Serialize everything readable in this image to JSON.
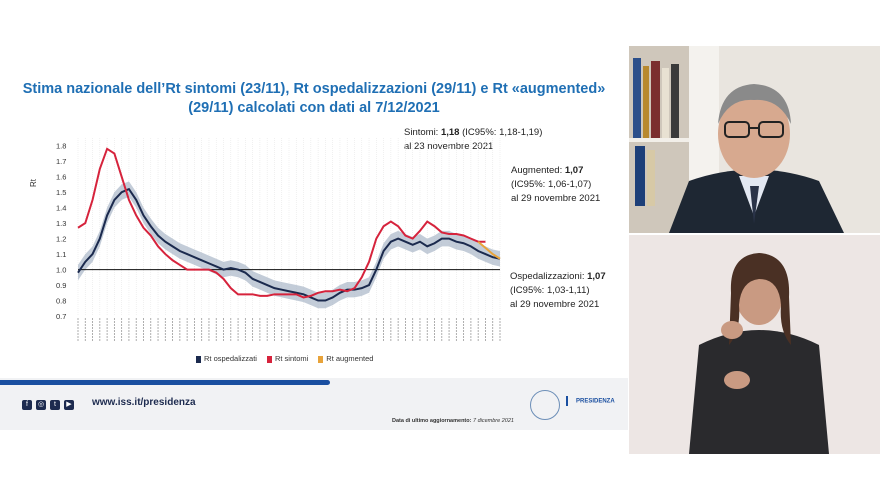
{
  "slide": {
    "title_line1": "Stima nazionale dell’Rt sintomi (23/11), Rt ospedalizzazioni (29/11) e Rt «augmented»",
    "title_line2": "(29/11) calcolati con dati al 7/12/2021",
    "annotations": {
      "sintomi": {
        "label": "Sintomi:",
        "value": "1,18",
        "ci": "(IC95%: 1,18-1,19)",
        "date": "al 23 novembre 2021"
      },
      "augmented": {
        "label": "Augmented:",
        "value": "1,07",
        "ci": "(IC95%: 1,06-1,07)",
        "date": "al 29 novembre 2021"
      },
      "ospedalizzazioni": {
        "label": "Ospedalizzazioni:",
        "value": "1,07",
        "ci": "(IC95%: 1,03-1,11)",
        "date": "al 29 novembre 2021"
      }
    },
    "legend": [
      {
        "label": "Rt ospedalizzati",
        "color": "#1b2a4e"
      },
      {
        "label": "Rt sintomi",
        "color": "#d6233c"
      },
      {
        "label": "Rt augmented",
        "color": "#e8a33a"
      }
    ],
    "footer": {
      "url": "www.iss.it/presidenza",
      "update_label": "Data di ultimo aggiornamento:",
      "update_date": "7 dicembre 2021",
      "presidenza": "PRESIDENZA",
      "social_icons": [
        "facebook-icon",
        "instagram-icon",
        "twitter-icon",
        "youtube-icon"
      ]
    }
  },
  "chart_data": {
    "type": "line",
    "ylabel": "Rt",
    "yticks": [
      "0.7",
      "0.8",
      "0.9",
      "1.0",
      "1.1",
      "1.2",
      "1.3",
      "1.4",
      "1.5",
      "1.6",
      "1.7",
      "1.8"
    ],
    "ylim": [
      0.7,
      1.85
    ],
    "reference_line": 1.0,
    "series": [
      {
        "name": "Rt ospedalizzati",
        "color": "#1b2a4e",
        "band": true,
        "values": [
          0.98,
          1.05,
          1.1,
          1.2,
          1.35,
          1.45,
          1.5,
          1.52,
          1.45,
          1.35,
          1.28,
          1.22,
          1.18,
          1.15,
          1.12,
          1.1,
          1.08,
          1.06,
          1.04,
          1.02,
          1.0,
          1.01,
          1.0,
          0.98,
          0.94,
          0.92,
          0.9,
          0.88,
          0.87,
          0.86,
          0.85,
          0.84,
          0.82,
          0.8,
          0.8,
          0.82,
          0.85,
          0.87,
          0.87,
          0.88,
          0.9,
          1.0,
          1.12,
          1.18,
          1.2,
          1.18,
          1.16,
          1.18,
          1.15,
          1.17,
          1.2,
          1.2,
          1.18,
          1.17,
          1.15,
          1.12,
          1.1,
          1.08,
          1.07
        ]
      },
      {
        "name": "Rt sintomi",
        "color": "#d6233c",
        "band": false,
        "values": [
          1.27,
          1.3,
          1.45,
          1.65,
          1.78,
          1.75,
          1.6,
          1.45,
          1.35,
          1.27,
          1.22,
          1.15,
          1.1,
          1.06,
          1.03,
          1.0,
          1.0,
          1.0,
          1.0,
          0.98,
          0.94,
          0.88,
          0.84,
          0.84,
          0.84,
          0.83,
          0.83,
          0.84,
          0.84,
          0.84,
          0.84,
          0.82,
          0.83,
          0.85,
          0.86,
          0.86,
          0.87,
          0.86,
          0.88,
          0.95,
          1.05,
          1.2,
          1.28,
          1.31,
          1.28,
          1.22,
          1.2,
          1.25,
          1.31,
          1.28,
          1.24,
          1.23,
          1.23,
          1.22,
          1.2,
          1.18,
          1.18,
          null,
          null
        ]
      },
      {
        "name": "Rt augmented",
        "color": "#e8a33a",
        "band": false,
        "values": [
          null,
          null,
          null,
          null,
          null,
          null,
          null,
          null,
          null,
          null,
          null,
          null,
          null,
          null,
          null,
          null,
          null,
          null,
          null,
          null,
          null,
          null,
          null,
          null,
          null,
          null,
          null,
          null,
          null,
          null,
          null,
          null,
          null,
          null,
          null,
          null,
          null,
          null,
          null,
          null,
          null,
          null,
          null,
          null,
          null,
          null,
          null,
          null,
          null,
          null,
          null,
          null,
          null,
          null,
          null,
          1.18,
          1.14,
          1.1,
          1.07
        ]
      }
    ]
  }
}
